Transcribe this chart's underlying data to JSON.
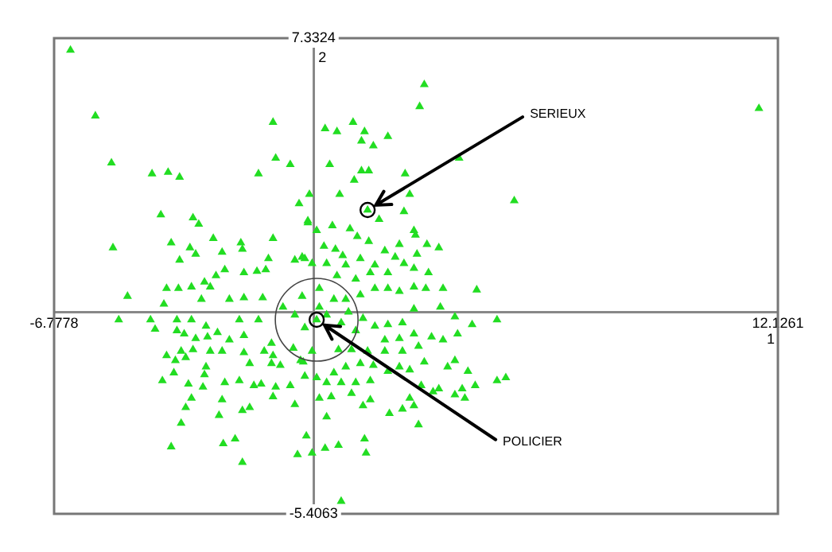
{
  "chart_data": {
    "type": "scatter",
    "xlabel": "1",
    "ylabel": "2",
    "xlim": [
      -6.7778,
      12.1261
    ],
    "ylim": [
      -5.4063,
      7.3324
    ],
    "xticks": [
      -6.7778,
      12.1261
    ],
    "yticks": [
      -5.4063,
      7.3324
    ],
    "legend": false,
    "marker": "triangle",
    "series": [
      {
        "color": "#22dd22",
        "x": [
          -6.35,
          -5.7,
          -5.28,
          -5.24,
          -4.86,
          -4.22,
          -3.8,
          -3.5,
          -3.99,
          -3.15,
          -3.0,
          -3.72,
          -3.23,
          -3.08,
          -3.5,
          -2.62,
          -2.39,
          -1.9,
          -1.86,
          -1.06,
          -0.99,
          -0.61,
          -1.44,
          -1.06,
          -0.38,
          -0.15,
          -0.49,
          -0.23,
          -1.18,
          -2.32,
          -1.82,
          -1.48,
          -1.25,
          -2.55,
          -2.85,
          -2.7,
          -3.84,
          -3.53,
          -3.19,
          -2.93,
          -2.2,
          -1.82,
          -1.33,
          -3.91,
          2.89,
          2.77,
          1.03,
          0.3,
          0.61,
          1.33,
          1.94,
          1.25,
          1.56,
          3.8,
          0.42,
          1.25,
          1.44,
          2.39,
          1.06,
          5.24,
          0.68,
          2.51,
          -0.11,
          1.41,
          2.36,
          1.71,
          -0.15,
          0.49,
          0.95,
          2.62,
          2.66,
          0.08,
          1.14,
          1.44,
          2.96,
          3.27,
          2.24,
          1.86,
          0.27,
          0.57,
          0.76,
          -0.3,
          2.7,
          2.13,
          1.22,
          1.6,
          2.36,
          0.84,
          0.34,
          -0.04,
          3.0,
          2.62,
          1.94,
          1.48,
          1.1,
          0.61,
          4.26,
          3.38,
          2.93,
          2.62,
          2.24,
          1.94,
          1.6,
          1.22,
          0.84,
          0.15,
          -0.3,
          -5.09,
          -4.26,
          -3.57,
          -3.19,
          -4.14,
          -3.57,
          -3.38,
          -2.81,
          -2.51,
          -1.94,
          -1.44,
          -3.08,
          -2.77,
          -2.2,
          -1.82,
          -1.1,
          -0.53,
          -3.84,
          -3.46,
          -3.15,
          -2.7,
          -2.39,
          -1.82,
          -1.29,
          -1.06,
          -3.61,
          -3.34,
          -2.81,
          -1.67,
          -1.1,
          -0.87,
          -0.34,
          -3.95,
          -3.65,
          -2.85,
          -2.32,
          -1.94,
          -1.56,
          -1.37,
          -0.99,
          -0.61,
          -0.23,
          -2.89,
          -3.27,
          -3.19,
          -2.39,
          -1.06,
          -0.49,
          -3.34,
          -1.86,
          -1.67,
          -2.47,
          -3.46,
          -0.19,
          -2.05,
          -2.36,
          -0.42,
          -3.72,
          -1.86,
          4.79,
          4.14,
          3.69,
          3.31,
          2.62,
          2.32,
          1.94,
          1.6,
          3.76,
          3.38,
          3.08,
          2.62,
          2.24,
          1.86,
          2.74,
          2.32,
          1.86,
          1.41,
          0.99,
          0.65,
          3.69,
          3.5,
          2.89,
          2.51,
          2.24,
          1.94,
          1.56,
          1.22,
          0.84,
          0.53,
          0.08,
          4.03,
          4.79,
          5.02,
          4.22,
          3.88,
          3.69,
          3.95,
          3.27,
          3.12,
          2.81,
          2.51,
          2.62,
          2.32,
          1.98,
          1.48,
          1.1,
          0.72,
          0.34,
          0.99,
          0.46,
          0.15,
          1.48,
          1.29,
          0.34,
          2.74,
          1.33,
          1.37,
          0.65,
          0.3,
          -0.04,
          0.72,
          -0.04,
          -0.27,
          0.08,
          11.63,
          0.15,
          0.34,
          0.53,
          0.72,
          0.91,
          -0.23,
          -0.49,
          -0.8,
          1.1,
          1.29
        ],
        "values": [
          7.01,
          5.25,
          3.99,
          1.72,
          0.42,
          3.7,
          3.74,
          3.61,
          2.6,
          2.52,
          2.35,
          1.85,
          1.72,
          1.55,
          1.39,
          1.97,
          1.6,
          1.85,
          1.68,
          5.08,
          4.12,
          3.95,
          3.7,
          1.97,
          2.9,
          2.39,
          1.39,
          1.43,
          1.43,
          1.13,
          1.05,
          1.09,
          1.13,
          0.97,
          0.8,
          0.67,
          0.63,
          0.63,
          0.67,
          0.34,
          0.34,
          0.38,
          0.38,
          0.21,
          6.09,
          5.5,
          5.08,
          4.91,
          4.83,
          4.83,
          4.7,
          4.58,
          4.45,
          4.12,
          3.95,
          3.78,
          3.78,
          3.7,
          3.53,
          2.98,
          3.15,
          3.15,
          3.15,
          2.73,
          2.69,
          2.48,
          2.44,
          2.31,
          2.23,
          2.18,
          2.06,
          2.18,
          2.02,
          1.89,
          1.81,
          1.72,
          1.81,
          1.64,
          1.76,
          1.68,
          1.51,
          1.47,
          1.55,
          1.47,
          1.43,
          1.26,
          1.3,
          1.26,
          1.3,
          1.3,
          1.05,
          1.17,
          1.05,
          1.05,
          0.88,
          0.97,
          0.59,
          0.63,
          0.63,
          0.67,
          0.55,
          0.63,
          0.63,
          0.46,
          0.34,
          0.63,
          0.42,
          -0.21,
          -0.21,
          -0.21,
          -0.21,
          -0.46,
          -0.5,
          -0.59,
          -0.38,
          -0.55,
          -0.21,
          -0.21,
          -0.71,
          -0.67,
          -0.75,
          -0.63,
          -0.84,
          -0.97,
          -1.17,
          -1.05,
          -1.01,
          -1.05,
          -1.05,
          -1.09,
          -1.05,
          -1.17,
          -1.3,
          -1.22,
          -1.47,
          -1.38,
          -1.38,
          -1.43,
          -1.3,
          -1.84,
          -1.63,
          -1.68,
          -1.89,
          -1.84,
          -1.97,
          -1.93,
          -2.01,
          -1.97,
          -1.72,
          -2.01,
          -1.93,
          -2.31,
          -2.35,
          -2.27,
          -2.48,
          -2.56,
          -2.64,
          -2.56,
          -2.77,
          -2.98,
          -3.32,
          -3.4,
          -3.53,
          -3.82,
          -3.61,
          -4.03,
          -0.21,
          -0.34,
          -0.13,
          0.13,
          0.08,
          -0.29,
          -0.34,
          -0.38,
          -0.59,
          -0.75,
          -0.67,
          -0.59,
          -0.71,
          -0.75,
          -0.92,
          -1.05,
          -1.05,
          -1.05,
          -1.01,
          -1.01,
          -1.3,
          -1.47,
          -1.34,
          -1.55,
          -1.47,
          -1.59,
          -1.43,
          -1.38,
          -1.47,
          -1.63,
          -1.76,
          -1.59,
          -1.84,
          -1.76,
          -1.97,
          -2.06,
          -2.22,
          -2.31,
          -2.06,
          -2.14,
          -1.97,
          -2.31,
          -2.51,
          -2.6,
          -2.72,
          -1.84,
          -1.89,
          -1.89,
          -1.89,
          -2.18,
          -2.27,
          -2.31,
          -2.35,
          -2.51,
          -2.81,
          -3.02,
          -3.4,
          -3.78,
          -3.57,
          -3.65,
          -3.78,
          -5.07,
          -1.05,
          -1.34,
          -0.21,
          5.45,
          0.13,
          -0.08,
          0.34,
          -0.29,
          0.0,
          -0.42,
          -0.08,
          0.13,
          -0.5,
          -0.17
        ]
      }
    ],
    "annotations": [
      {
        "text": "SERIEUX",
        "x": 1.41,
        "y": 2.73
      },
      {
        "text": "POLICIER",
        "x": 0.08,
        "y": -0.21
      }
    ]
  }
}
